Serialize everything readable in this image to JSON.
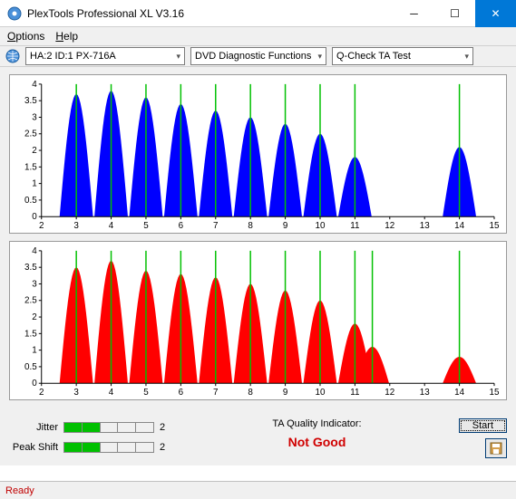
{
  "window": {
    "title": "PlexTools Professional XL V3.16"
  },
  "menu": {
    "options": "Options",
    "help": "Help"
  },
  "toolbar": {
    "device": "HA:2 ID:1   PX-716A",
    "func": "DVD Diagnostic Functions",
    "test": "Q-Check TA Test"
  },
  "chart_top": {
    "type": "area",
    "ylim": [
      0,
      4
    ],
    "yticks": [
      0,
      0.5,
      1,
      1.5,
      2,
      2.5,
      3,
      3.5,
      4
    ],
    "xlim": [
      2,
      15
    ],
    "xticks": [
      2,
      3,
      4,
      5,
      6,
      7,
      8,
      9,
      10,
      11,
      12,
      13,
      14,
      15
    ],
    "fill_color": "#0000ff",
    "peak_line_color": "#00c000",
    "grid_color": "#c0c0c0",
    "peaks": [
      {
        "x": 3,
        "h": 3.7
      },
      {
        "x": 4,
        "h": 3.8
      },
      {
        "x": 5,
        "h": 3.6
      },
      {
        "x": 6,
        "h": 3.4
      },
      {
        "x": 7,
        "h": 3.2
      },
      {
        "x": 8,
        "h": 3.0
      },
      {
        "x": 9,
        "h": 2.8
      },
      {
        "x": 10,
        "h": 2.5
      },
      {
        "x": 11,
        "h": 1.8
      },
      {
        "x": 14,
        "h": 2.1
      }
    ],
    "half_width": 0.48
  },
  "chart_bottom": {
    "type": "area",
    "ylim": [
      0,
      4
    ],
    "yticks": [
      0,
      0.5,
      1,
      1.5,
      2,
      2.5,
      3,
      3.5,
      4
    ],
    "xlim": [
      2,
      15
    ],
    "xticks": [
      2,
      3,
      4,
      5,
      6,
      7,
      8,
      9,
      10,
      11,
      12,
      13,
      14,
      15
    ],
    "fill_color": "#ff0000",
    "peak_line_color": "#00c000",
    "grid_color": "#c0c0c0",
    "peaks": [
      {
        "x": 3,
        "h": 3.5
      },
      {
        "x": 4,
        "h": 3.7
      },
      {
        "x": 5,
        "h": 3.4
      },
      {
        "x": 6,
        "h": 3.3
      },
      {
        "x": 7,
        "h": 3.2
      },
      {
        "x": 8,
        "h": 3.0
      },
      {
        "x": 9,
        "h": 2.8
      },
      {
        "x": 10,
        "h": 2.5
      },
      {
        "x": 11,
        "h": 1.8
      },
      {
        "x": 11.5,
        "h": 1.1
      },
      {
        "x": 14,
        "h": 0.8
      }
    ],
    "half_width": 0.48
  },
  "metrics": {
    "jitter": {
      "label": "Jitter",
      "value": 2,
      "max": 5
    },
    "peak_shift": {
      "label": "Peak Shift",
      "value": 2,
      "max": 5
    }
  },
  "ta": {
    "label": "TA Quality Indicator:",
    "result": "Not Good"
  },
  "buttons": {
    "start": "Start"
  },
  "status": "Ready"
}
